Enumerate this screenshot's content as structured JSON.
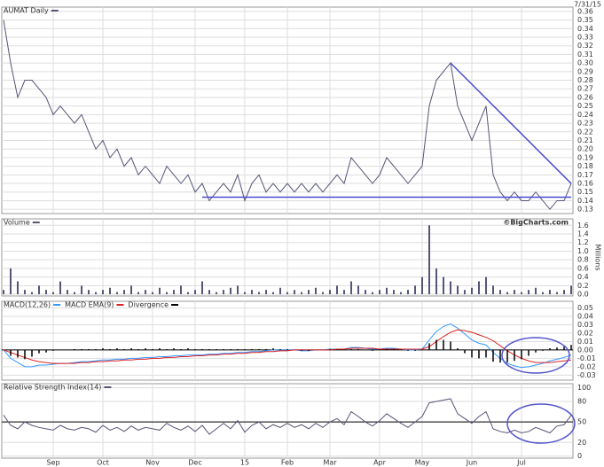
{
  "chart_data": [
    {
      "type": "line",
      "title": "AUMAT Daily",
      "date": "7/31/15",
      "color": "#555577",
      "grid": true,
      "values": [
        0.35,
        0.3,
        0.26,
        0.28,
        0.28,
        0.27,
        0.26,
        0.24,
        0.25,
        0.24,
        0.23,
        0.24,
        0.22,
        0.2,
        0.21,
        0.19,
        0.2,
        0.18,
        0.19,
        0.17,
        0.18,
        0.17,
        0.16,
        0.18,
        0.17,
        0.16,
        0.17,
        0.15,
        0.16,
        0.14,
        0.15,
        0.16,
        0.15,
        0.17,
        0.14,
        0.16,
        0.17,
        0.15,
        0.16,
        0.15,
        0.16,
        0.15,
        0.16,
        0.15,
        0.16,
        0.15,
        0.16,
        0.17,
        0.16,
        0.19,
        0.18,
        0.17,
        0.16,
        0.17,
        0.19,
        0.18,
        0.17,
        0.16,
        0.17,
        0.18,
        0.25,
        0.28,
        0.29,
        0.3,
        0.25,
        0.23,
        0.21,
        0.23,
        0.25,
        0.17,
        0.15,
        0.14,
        0.15,
        0.14,
        0.14,
        0.15,
        0.14,
        0.13,
        0.14,
        0.14,
        0.16
      ],
      "trendlines": [
        {
          "x": [
            63,
            80
          ],
          "y": [
            0.3,
            0.16
          ]
        },
        {
          "x": [
            28,
            80
          ],
          "y": [
            0.144,
            0.144
          ]
        }
      ],
      "trendline_color": "#4a4ad0",
      "ylim": [
        0.125,
        0.365
      ],
      "yticks": [
        0.13,
        0.14,
        0.15,
        0.16,
        0.17,
        0.18,
        0.19,
        {
          "value": 0.2,
          "label": "0.20"
        },
        0.21,
        0.22,
        0.23,
        0.24,
        0.25,
        0.26,
        0.27,
        0.28,
        0.29,
        {
          "value": 0.3,
          "label": "0.30"
        },
        0.31,
        0.32,
        0.33,
        0.34,
        0.35,
        0.36
      ]
    },
    {
      "type": "bar",
      "title": "Volume",
      "credit": "©BigCharts.com",
      "axis_label": "Millions",
      "color": "#555577",
      "grid": true,
      "values": [
        0.1,
        0.6,
        0.3,
        0.1,
        0.05,
        0.2,
        0.1,
        0.05,
        0.3,
        0.1,
        0.05,
        0.2,
        0.1,
        0.05,
        0.1,
        0.15,
        0.05,
        0.1,
        0.2,
        0.05,
        0.1,
        0.05,
        0.15,
        0.05,
        0.1,
        0.2,
        0.05,
        0.1,
        0.3,
        0.1,
        0.05,
        0.1,
        0.15,
        0.2,
        0.05,
        0.1,
        0.05,
        0.1,
        0.05,
        0.15,
        0.05,
        0.1,
        0.05,
        0.1,
        0.15,
        0.05,
        0.1,
        0.2,
        0.1,
        0.3,
        0.2,
        0.1,
        0.05,
        0.1,
        0.15,
        0.1,
        0.05,
        0.1,
        0.2,
        0.4,
        1.6,
        0.6,
        0.4,
        0.3,
        0.2,
        0.1,
        0.15,
        0.3,
        0.4,
        0.2,
        0.1,
        0.05,
        0.1,
        0.05,
        0.1,
        0.15,
        0.05,
        0.1,
        0.05,
        0.1,
        0.2
      ],
      "ylim": [
        -0.04,
        1.75
      ],
      "yticks": [
        {
          "value": 0,
          "label": "0.0"
        },
        0.2,
        0.4,
        0.6,
        0.8,
        {
          "value": 1,
          "label": "1.0"
        },
        1.2,
        1.4,
        1.6
      ]
    },
    {
      "type": "line",
      "grid": true,
      "reference_line": 0,
      "series": [
        {
          "name": "MACD(12,26)",
          "color": "#3399ff",
          "values": [
            0.0,
            -0.01,
            -0.015,
            -0.02,
            -0.02,
            -0.018,
            -0.018,
            -0.017,
            -0.016,
            -0.016,
            -0.015,
            -0.014,
            -0.014,
            -0.013,
            -0.012,
            -0.012,
            -0.011,
            -0.011,
            -0.01,
            -0.01,
            -0.009,
            -0.009,
            -0.008,
            -0.008,
            -0.007,
            -0.007,
            -0.006,
            -0.006,
            -0.006,
            -0.005,
            -0.005,
            -0.004,
            -0.004,
            -0.003,
            -0.003,
            -0.002,
            -0.002,
            -0.001,
            0.0,
            0.0,
            0.0,
            0.0,
            -0.001,
            -0.001,
            0.0,
            0.0,
            0.001,
            0.001,
            0.001,
            0.003,
            0.003,
            0.002,
            0.001,
            0.001,
            0.002,
            0.002,
            0.001,
            0.0,
            0.0,
            0.001,
            0.012,
            0.022,
            0.028,
            0.031,
            0.026,
            0.019,
            0.012,
            0.008,
            0.006,
            -0.003,
            -0.01,
            -0.016,
            -0.019,
            -0.021,
            -0.02,
            -0.018,
            -0.016,
            -0.013,
            -0.011,
            -0.009,
            -0.006
          ]
        },
        {
          "name": "MACD EMA(9)",
          "color": "#dd2222",
          "values": [
            0.0,
            -0.003,
            -0.006,
            -0.009,
            -0.012,
            -0.014,
            -0.015,
            -0.016,
            -0.016,
            -0.016,
            -0.016,
            -0.015,
            -0.015,
            -0.014,
            -0.014,
            -0.013,
            -0.013,
            -0.012,
            -0.012,
            -0.011,
            -0.011,
            -0.01,
            -0.01,
            -0.009,
            -0.009,
            -0.008,
            -0.008,
            -0.007,
            -0.007,
            -0.006,
            -0.006,
            -0.005,
            -0.005,
            -0.004,
            -0.004,
            -0.003,
            -0.003,
            -0.002,
            -0.002,
            -0.001,
            -0.001,
            0.0,
            0.0,
            0.0,
            0.0,
            0.0,
            0.0,
            0.001,
            0.001,
            0.002,
            0.002,
            0.002,
            0.002,
            0.001,
            0.001,
            0.001,
            0.001,
            0.001,
            0.001,
            0.001,
            0.004,
            0.01,
            0.016,
            0.021,
            0.024,
            0.023,
            0.021,
            0.018,
            0.015,
            0.011,
            0.005,
            -0.001,
            -0.006,
            -0.01,
            -0.013,
            -0.015,
            -0.015,
            -0.015,
            -0.014,
            -0.013,
            -0.012
          ]
        },
        {
          "name": "Divergence",
          "color": "#000000",
          "type": "bar",
          "values": [
            0,
            -0.007,
            -0.009,
            -0.011,
            -0.008,
            -0.004,
            -0.003,
            -0.001,
            0,
            0,
            0.001,
            0.001,
            0.001,
            0.001,
            0.002,
            0.001,
            0.002,
            0.001,
            0.002,
            0.001,
            0.002,
            0.001,
            0.002,
            0.001,
            0.002,
            0.001,
            0.002,
            0.001,
            0.001,
            0.001,
            0.001,
            0.001,
            0.001,
            0.001,
            0.001,
            0.001,
            0.001,
            0.001,
            0.002,
            0.001,
            0.001,
            0,
            -0.001,
            -0.001,
            0,
            0,
            0.001,
            0,
            0,
            0.001,
            0.001,
            0,
            -0.001,
            0,
            0.001,
            0.001,
            0,
            -0.001,
            -0.001,
            0,
            0.008,
            0.012,
            0.012,
            0.01,
            0.002,
            -0.004,
            -0.009,
            -0.01,
            -0.009,
            -0.014,
            -0.015,
            -0.015,
            -0.013,
            -0.011,
            -0.007,
            -0.003,
            -0.001,
            0.002,
            0.003,
            0.004,
            0.006
          ]
        }
      ],
      "ylim": [
        -0.036,
        0.058
      ],
      "yticks": [
        -0.03,
        -0.02,
        -0.01,
        {
          "value": 0,
          "label": "0.00"
        },
        0.01,
        0.02,
        0.03,
        0.04,
        0.05
      ]
    },
    {
      "type": "line",
      "title": "Relative Strength Index(14)",
      "color": "#555577",
      "grid": true,
      "reference_line": 50,
      "categories": [
        null,
        null,
        null,
        null,
        null,
        null,
        null,
        "Sep",
        null,
        null,
        null,
        null,
        null,
        null,
        "Oct",
        null,
        null,
        null,
        null,
        null,
        null,
        "Nov",
        null,
        null,
        null,
        null,
        null,
        "Dec",
        null,
        null,
        null,
        null,
        null,
        null,
        "15",
        null,
        null,
        null,
        null,
        null,
        "Feb",
        null,
        null,
        null,
        null,
        null,
        "Mar",
        null,
        null,
        null,
        null,
        null,
        null,
        "Apr",
        null,
        null,
        null,
        null,
        null,
        "May",
        null,
        null,
        null,
        null,
        null,
        null,
        "Jun",
        null,
        null,
        null,
        null,
        null,
        null,
        "Jul",
        null,
        null,
        null,
        null,
        null,
        null,
        null
      ],
      "values": [
        60,
        45,
        40,
        50,
        45,
        42,
        40,
        38,
        45,
        40,
        38,
        42,
        40,
        35,
        45,
        38,
        42,
        36,
        44,
        38,
        42,
        40,
        38,
        48,
        42,
        38,
        44,
        36,
        45,
        32,
        40,
        48,
        40,
        52,
        35,
        45,
        50,
        40,
        46,
        42,
        48,
        42,
        46,
        40,
        48,
        42,
        50,
        55,
        46,
        65,
        58,
        50,
        44,
        52,
        62,
        55,
        48,
        42,
        50,
        58,
        78,
        80,
        82,
        84,
        62,
        55,
        48,
        58,
        65,
        40,
        36,
        34,
        38,
        34,
        36,
        42,
        38,
        34,
        44,
        46,
        60
      ],
      "ylim": [
        -3,
        106
      ],
      "yticks": [
        0,
        20,
        50,
        80,
        100
      ]
    }
  ]
}
